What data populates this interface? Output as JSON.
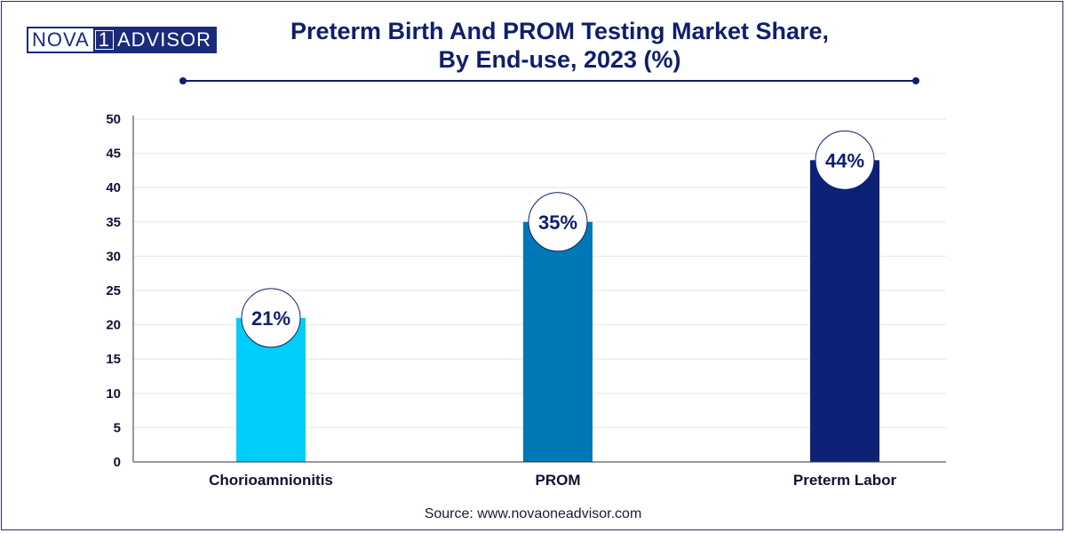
{
  "brand": {
    "part1": "NOVA",
    "part2": "1",
    "part3": "ADVISOR"
  },
  "header": {
    "title_line1": "Preterm Birth And PROM Testing Market Share,",
    "title_line2": "By End-use, 2023 (%)"
  },
  "source": "Source: www.novaoneadvisor.com",
  "colors": {
    "title": "#0f1e6e",
    "bar_chorioamnionitis": "#00cdfa",
    "bar_prom": "#0077b6",
    "bar_preterm_labor": "#0d2277"
  },
  "chart_data": {
    "type": "bar",
    "title": "Preterm Birth And PROM Testing Market Share, By End-use, 2023 (%)",
    "categories": [
      "Chorioamnionitis",
      "PROM",
      "Preterm Labor"
    ],
    "values": [
      21,
      35,
      44
    ],
    "data_labels": [
      "21%",
      "35%",
      "44%"
    ],
    "ylim": [
      0,
      50
    ],
    "yticks": [
      "0",
      "5",
      "10",
      "15",
      "20",
      "25",
      "30",
      "35",
      "40",
      "45",
      "50"
    ],
    "xlabel": "",
    "ylabel": "",
    "grid": true,
    "legend": "none"
  }
}
